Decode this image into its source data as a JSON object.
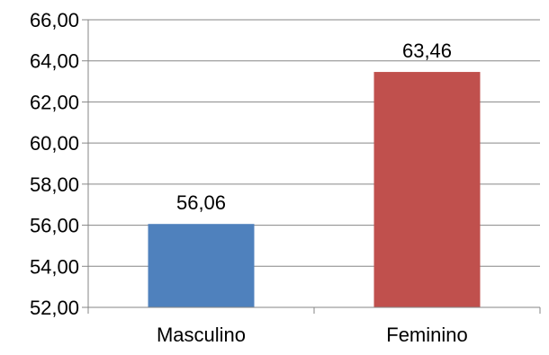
{
  "chart_data": {
    "type": "bar",
    "title": "",
    "xlabel": "",
    "ylabel": "",
    "categories": [
      "Masculino",
      "Feminino"
    ],
    "values": [
      56.06,
      63.46
    ],
    "value_labels": [
      "56,06",
      "63,46"
    ],
    "bar_colors": [
      "#4F81BD",
      "#C0504D"
    ],
    "ylim": [
      52,
      66
    ],
    "y_ticks": [
      52,
      54,
      56,
      58,
      60,
      62,
      64,
      66
    ],
    "y_tick_labels": [
      "52,00",
      "54,00",
      "56,00",
      "58,00",
      "60,00",
      "62,00",
      "64,00",
      "66,00"
    ],
    "grid": true,
    "grid_color": "#868686",
    "legend": false
  }
}
